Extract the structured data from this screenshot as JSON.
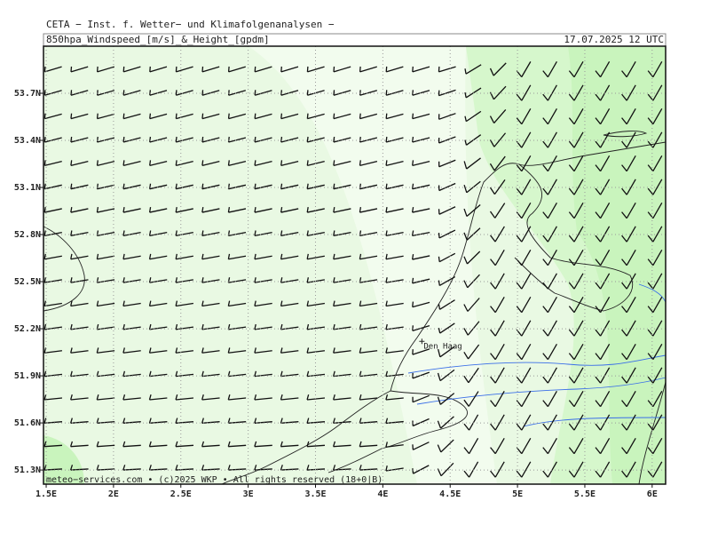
{
  "header": {
    "institute": "CETA − Inst. f. Wetter− und Klimafolgenanalysen −",
    "product": "850hpa_Windspeed_[m/s]_&_Height_[gpdm]",
    "valid_time": "17.07.2025 12 UTC"
  },
  "map": {
    "xlim": [
      1.48,
      6.1
    ],
    "ylim": [
      51.21,
      54.0
    ],
    "xticks": [
      {
        "value": 1.5,
        "label": "1.5E"
      },
      {
        "value": 2,
        "label": "2E"
      },
      {
        "value": 2.5,
        "label": "2.5E"
      },
      {
        "value": 3,
        "label": "3E"
      },
      {
        "value": 3.5,
        "label": "3.5E"
      },
      {
        "value": 4,
        "label": "4E"
      },
      {
        "value": 4.5,
        "label": "4.5E"
      },
      {
        "value": 5,
        "label": "5E"
      },
      {
        "value": 5.5,
        "label": "5.5E"
      },
      {
        "value": 6,
        "label": "6E"
      }
    ],
    "yticks": [
      {
        "value": 51.3,
        "label": "51.3N"
      },
      {
        "value": 51.6,
        "label": "51.6N"
      },
      {
        "value": 51.9,
        "label": "51.9N"
      },
      {
        "value": 52.2,
        "label": "52.2N"
      },
      {
        "value": 52.5,
        "label": "52.5N"
      },
      {
        "value": 52.8,
        "label": "52.8N"
      },
      {
        "value": 53.1,
        "label": "53.1N"
      },
      {
        "value": 53.4,
        "label": "53.4N"
      },
      {
        "value": 53.7,
        "label": "53.7N"
      }
    ],
    "places": [
      {
        "name": "Den Haag",
        "lon": 4.29,
        "lat": 52.12
      }
    ]
  },
  "footer": "meteo−services.com • (c)2025 WKP • All rights reserved (18+0|B)"
}
